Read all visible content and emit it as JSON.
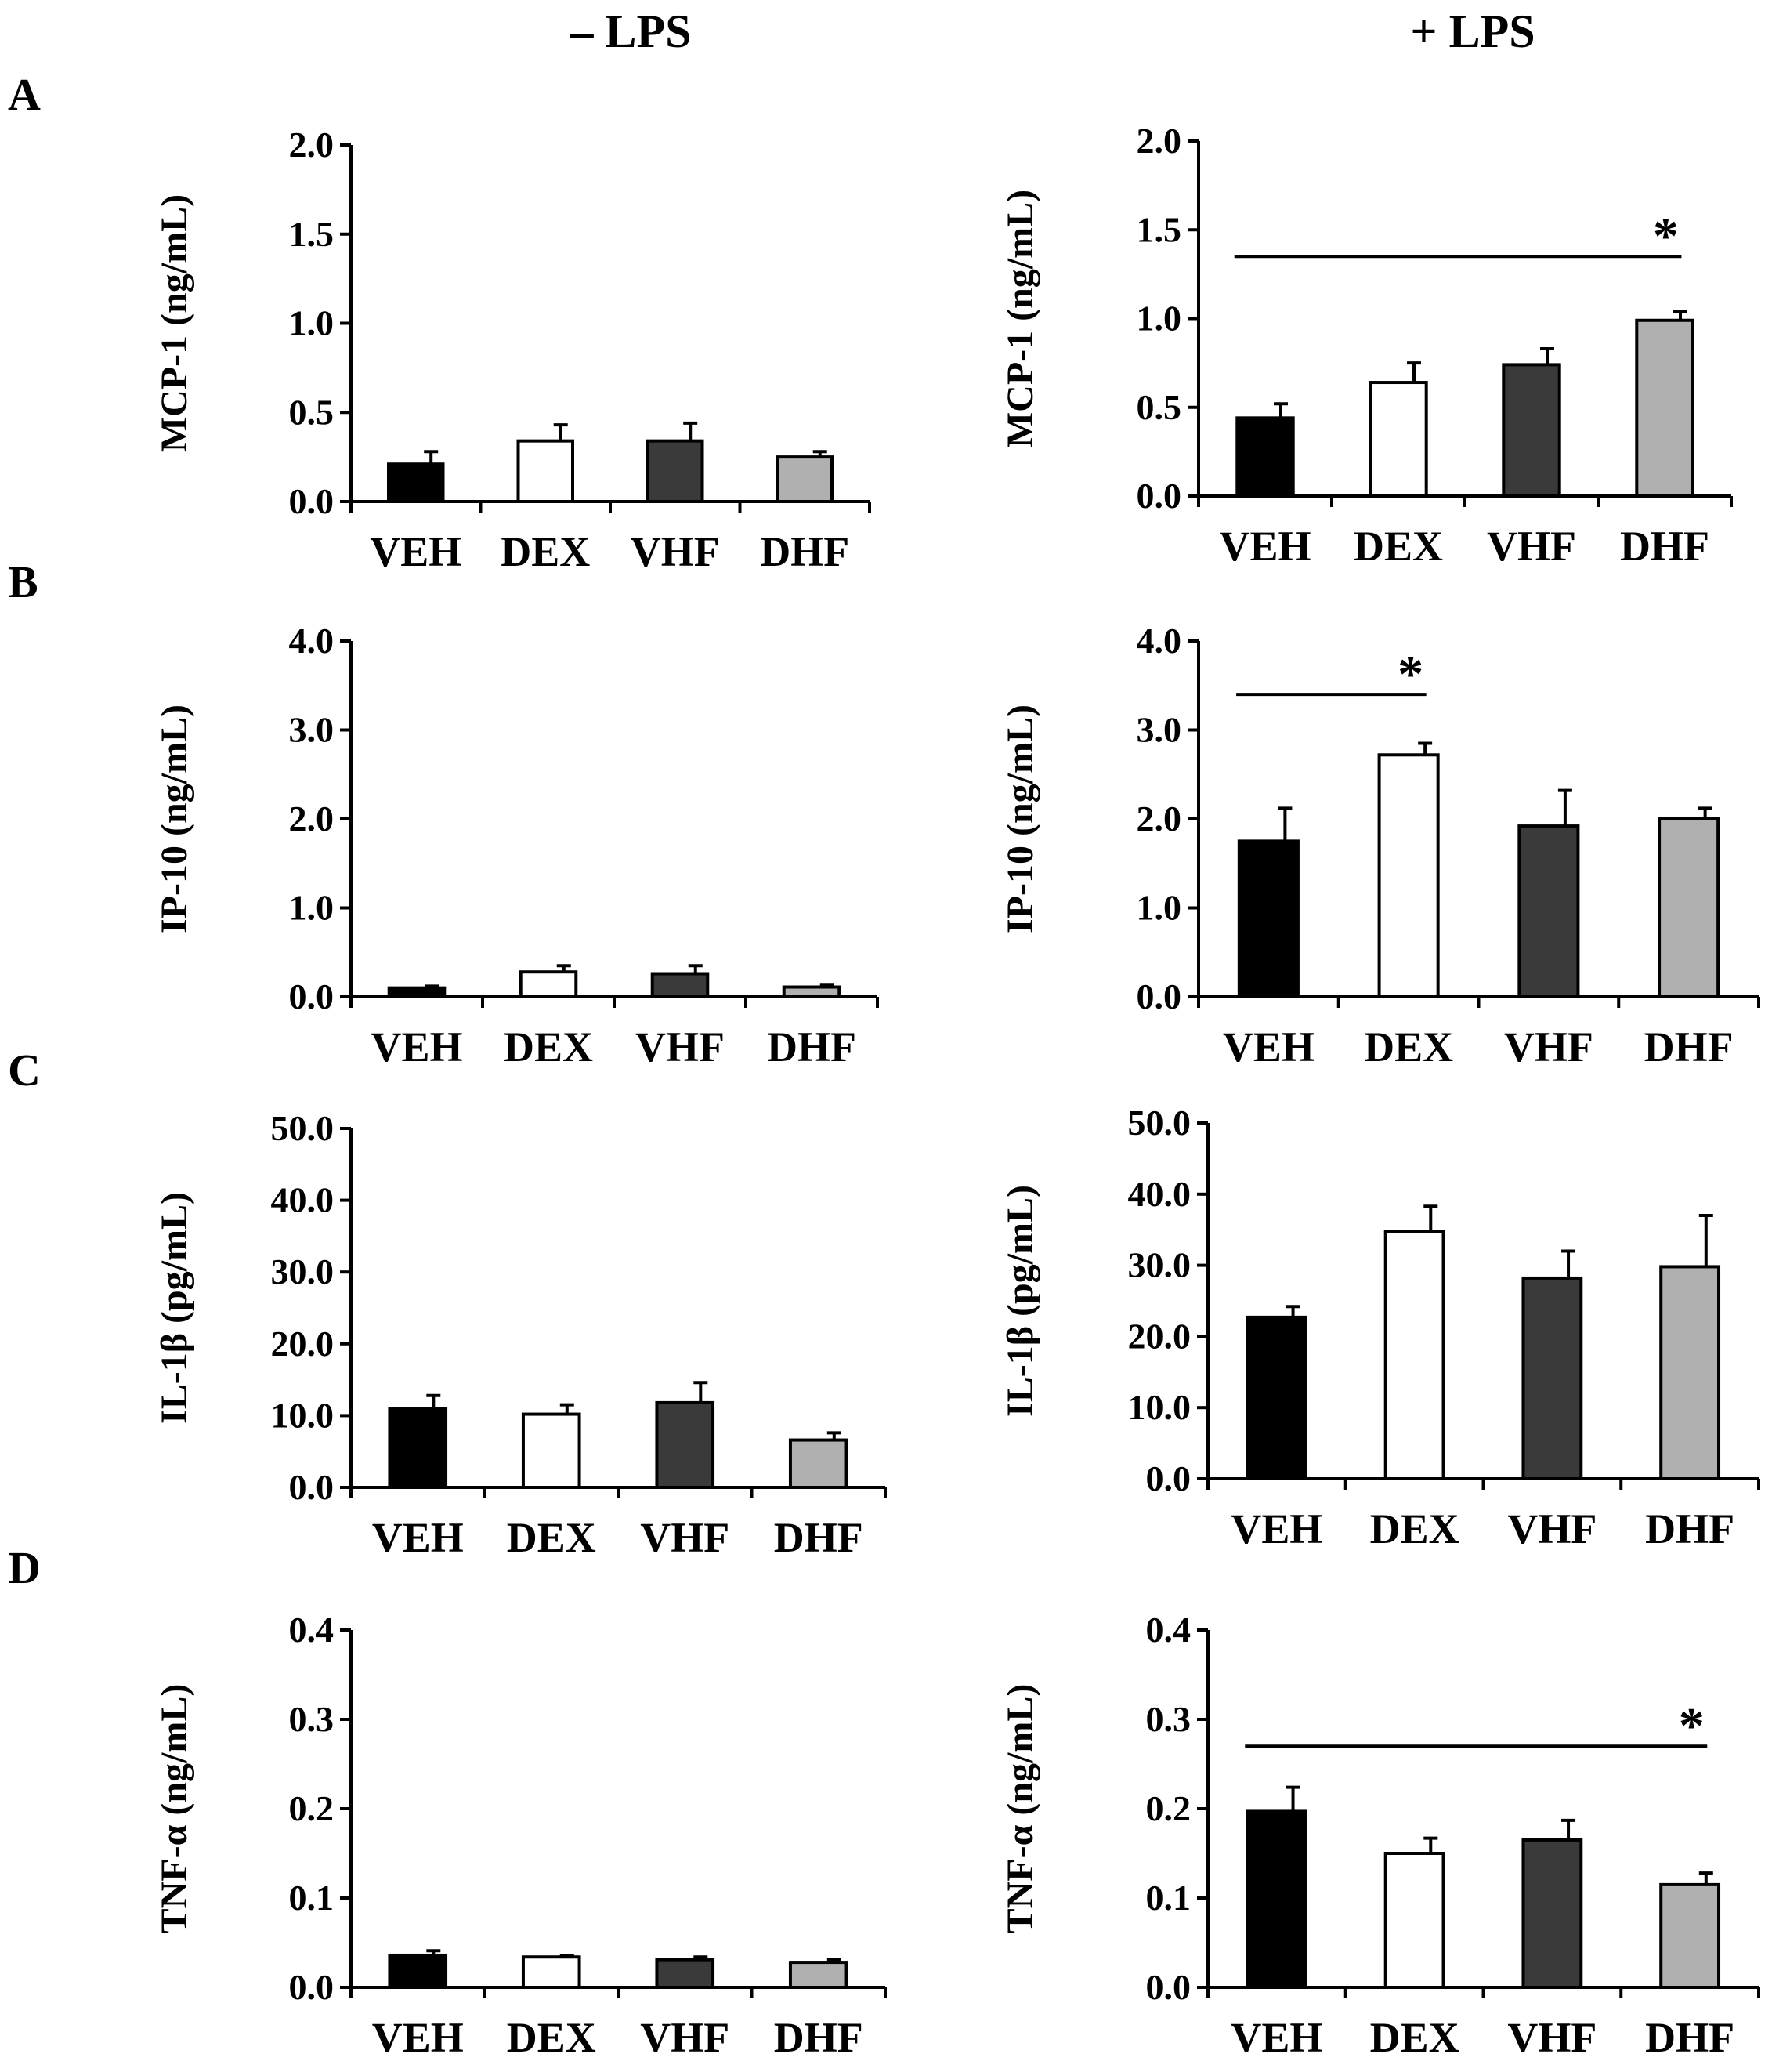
{
  "column_titles": [
    "– LPS",
    "+ LPS"
  ],
  "panel_letters": [
    "A",
    "B",
    "C",
    "D"
  ],
  "colors": {
    "VEH": "#000000",
    "DEX": "#ffffff",
    "VHF": "#3a3a3a",
    "DHF": "#b0b0b0"
  },
  "chart_data": [
    {
      "type": "bar",
      "panel": "A",
      "condition": "– LPS",
      "ylabel": "MCP-1  (ng/mL)",
      "categories": [
        "VEH",
        "DEX",
        "VHF",
        "DHF"
      ],
      "values": [
        0.21,
        0.34,
        0.34,
        0.25
      ],
      "errors": [
        0.07,
        0.09,
        0.1,
        0.03
      ],
      "ylim": [
        0,
        2.0
      ],
      "yticks": [
        "0.0",
        "0.5",
        "1.0",
        "1.5",
        "2.0"
      ],
      "significance": null
    },
    {
      "type": "bar",
      "panel": "A",
      "condition": "+ LPS",
      "ylabel": "MCP-1  (ng/mL)",
      "categories": [
        "VEH",
        "DEX",
        "VHF",
        "DHF"
      ],
      "values": [
        0.44,
        0.64,
        0.74,
        0.99
      ],
      "errors": [
        0.08,
        0.11,
        0.09,
        0.05
      ],
      "ylim": [
        0,
        2.0
      ],
      "yticks": [
        "0.0",
        "0.5",
        "1.0",
        "1.5",
        "2.0"
      ],
      "significance": {
        "from": "VEH",
        "to": "DHF",
        "y": 1.35,
        "label": "*"
      }
    },
    {
      "type": "bar",
      "panel": "B",
      "condition": "– LPS",
      "ylabel": "IP-10  (ng/mL)",
      "categories": [
        "VEH",
        "DEX",
        "VHF",
        "DHF"
      ],
      "values": [
        0.1,
        0.28,
        0.26,
        0.11
      ],
      "errors": [
        0.02,
        0.07,
        0.09,
        0.02
      ],
      "ylim": [
        0,
        4.0
      ],
      "yticks": [
        "0.0",
        "1.0",
        "2.0",
        "3.0",
        "4.0"
      ],
      "significance": null
    },
    {
      "type": "bar",
      "panel": "B",
      "condition": "+ LPS",
      "ylabel": "IP-10  (ng/mL)",
      "categories": [
        "VEH",
        "DEX",
        "VHF",
        "DHF"
      ],
      "values": [
        1.75,
        2.72,
        1.92,
        2.0
      ],
      "errors": [
        0.37,
        0.13,
        0.4,
        0.12
      ],
      "ylim": [
        0,
        4.0
      ],
      "yticks": [
        "0.0",
        "1.0",
        "2.0",
        "3.0",
        "4.0"
      ],
      "significance": {
        "from": "VEH",
        "to": "DEX",
        "y": 3.4,
        "label": "*"
      }
    },
    {
      "type": "bar",
      "panel": "C",
      "condition": "– LPS",
      "ylabel": "IL-1β  (pg/mL)",
      "categories": [
        "VEH",
        "DEX",
        "VHF",
        "DHF"
      ],
      "values": [
        11.0,
        10.2,
        11.8,
        6.6
      ],
      "errors": [
        1.8,
        1.3,
        2.8,
        1.0
      ],
      "ylim": [
        0,
        50.0
      ],
      "yticks": [
        "0.0",
        "10.0",
        "20.0",
        "30.0",
        "40.0",
        "50.0"
      ],
      "significance": null
    },
    {
      "type": "bar",
      "panel": "C",
      "condition": "+ LPS",
      "ylabel": "IL-1β  (pg/mL)",
      "categories": [
        "VEH",
        "DEX",
        "VHF",
        "DHF"
      ],
      "values": [
        22.7,
        34.8,
        28.2,
        29.8
      ],
      "errors": [
        1.5,
        3.5,
        3.8,
        7.2
      ],
      "ylim": [
        0,
        50.0
      ],
      "yticks": [
        "0.0",
        "10.0",
        "20.0",
        "30.0",
        "40.0",
        "50.0"
      ],
      "significance": null
    },
    {
      "type": "bar",
      "panel": "D",
      "condition": "– LPS",
      "ylabel": "TNF-α (ng/mL)",
      "categories": [
        "VEH",
        "DEX",
        "VHF",
        "DHF"
      ],
      "values": [
        0.036,
        0.034,
        0.031,
        0.028
      ],
      "errors": [
        0.005,
        0.002,
        0.003,
        0.003
      ],
      "ylim": [
        0,
        0.4
      ],
      "yticks": [
        "0.0",
        "0.1",
        "0.2",
        "0.3",
        "0.4"
      ],
      "significance": null
    },
    {
      "type": "bar",
      "panel": "D",
      "condition": "+ LPS",
      "ylabel": "TNF-α (ng/mL)",
      "categories": [
        "VEH",
        "DEX",
        "VHF",
        "DHF"
      ],
      "values": [
        0.197,
        0.15,
        0.165,
        0.115
      ],
      "errors": [
        0.027,
        0.017,
        0.022,
        0.013
      ],
      "ylim": [
        0,
        0.4
      ],
      "yticks": [
        "0.0",
        "0.1",
        "0.2",
        "0.3",
        "0.4"
      ],
      "significance": {
        "from": "VEH",
        "to": "DHF",
        "y": 0.27,
        "label": "*"
      }
    }
  ]
}
